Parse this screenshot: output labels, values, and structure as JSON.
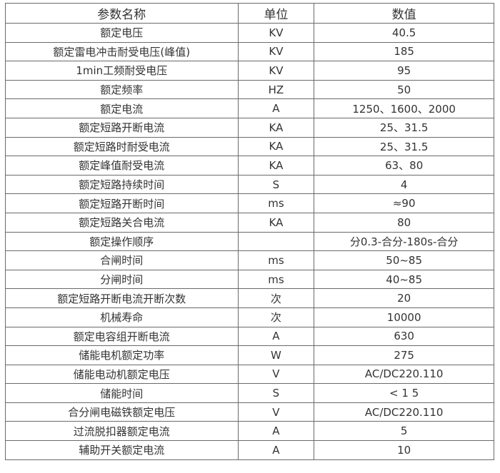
{
  "header": {
    "name": "参数名称",
    "unit": "单位",
    "value": "数值"
  },
  "rows": [
    {
      "name": "额定电压",
      "unit": "KV",
      "value": "40.5"
    },
    {
      "name": "额定雷电冲击耐受电压(峰值)",
      "unit": "KV",
      "value": "185"
    },
    {
      "name": "1min工频耐受电压",
      "unit": "KV",
      "value": "95"
    },
    {
      "name": "额定频率",
      "unit": "HZ",
      "value": "50"
    },
    {
      "name": "额定电流",
      "unit": "A",
      "value": "1250、1600、2000"
    },
    {
      "name": "额定短路开断电流",
      "unit": "KA",
      "value": "25、31.5"
    },
    {
      "name": "额定短路时耐受电流",
      "unit": "KA",
      "value": "25、31.5"
    },
    {
      "name": "额定峰值耐受电流",
      "unit": "KA",
      "value": "63、80"
    },
    {
      "name": "额定短路持续时间",
      "unit": "S",
      "value": "4"
    },
    {
      "name": "额定短路开断时间",
      "unit": "ms",
      "value": "≈90"
    },
    {
      "name": "额定短路关合电流",
      "unit": "KA",
      "value": "80"
    },
    {
      "name": "额定操作顺序",
      "unit": "",
      "value": "分0.3-合分-180s-合分"
    },
    {
      "name": "合闸时间",
      "unit": "ms",
      "value": "50~85"
    },
    {
      "name": "分闸时间",
      "unit": "ms",
      "value": "40~85"
    },
    {
      "name": "额定短路开断电流开断次数",
      "unit": "次",
      "value": "20"
    },
    {
      "name": "机械寿命",
      "unit": "次",
      "value": "10000"
    },
    {
      "name": "额定电容组开断电流",
      "unit": "A",
      "value": "630"
    },
    {
      "name": "储能电机额定功率",
      "unit": "W",
      "value": "275"
    },
    {
      "name": "储能电动机额定电压",
      "unit": "V",
      "value": "AC/DC220.110"
    },
    {
      "name": "储能时间",
      "unit": "S",
      "value": "< 1 5"
    },
    {
      "name": "合分闸电磁铁额定电压",
      "unit": "V",
      "value": "AC/DC220.110"
    },
    {
      "name": "过流脱扣器额定电流",
      "unit": "A",
      "value": "5"
    },
    {
      "name": "辅助开关额定电流",
      "unit": "A",
      "value": "10"
    }
  ]
}
